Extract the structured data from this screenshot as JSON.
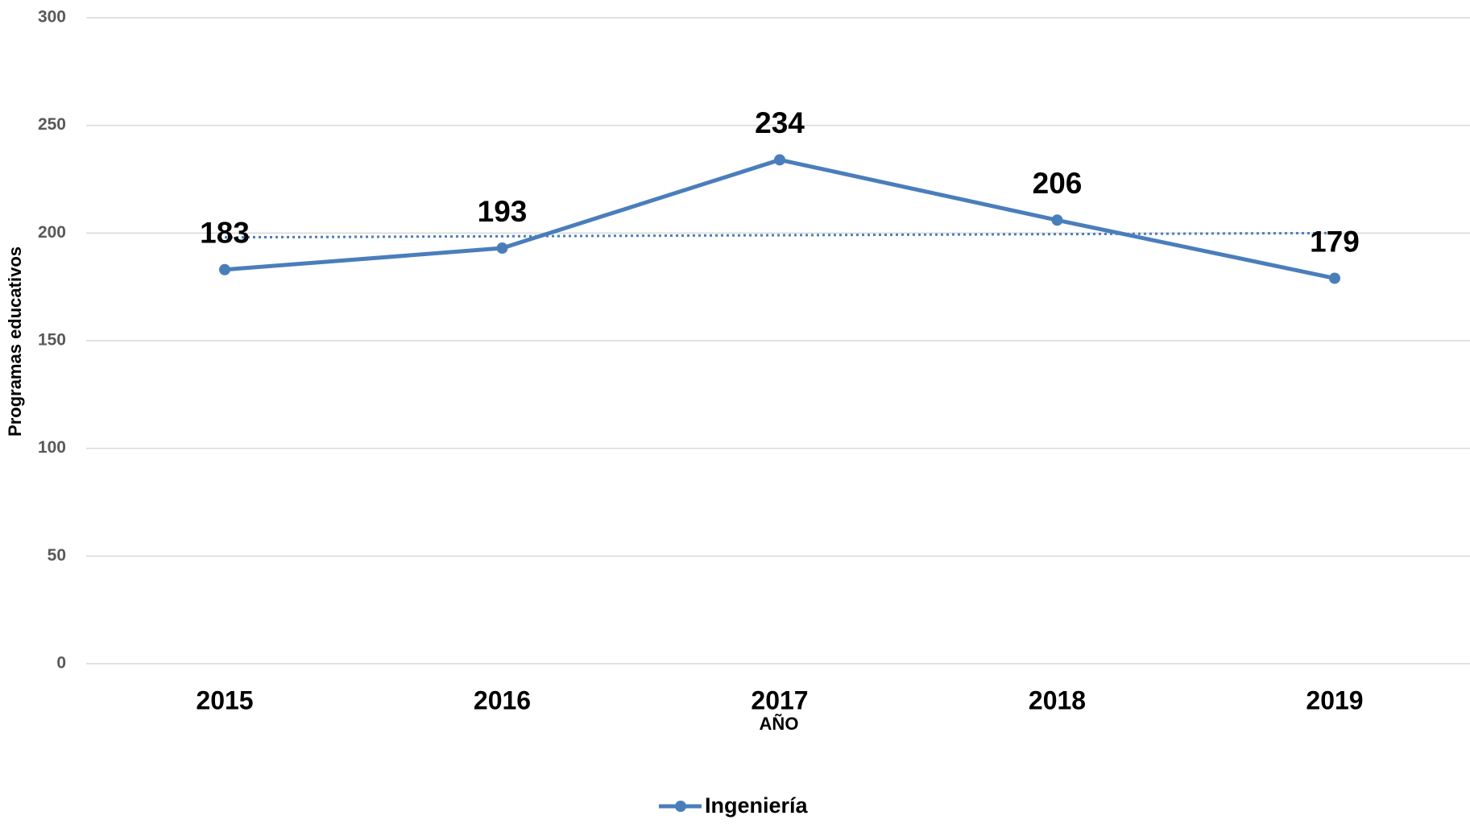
{
  "chart_data": {
    "type": "line",
    "x_label": "AÑO",
    "y_label": "Programas educativos",
    "categories": [
      "2015",
      "2016",
      "2017",
      "2018",
      "2019"
    ],
    "series": [
      {
        "name": "Ingeniería",
        "color": "#4a7ebb",
        "values": [
          183,
          193,
          234,
          206,
          179
        ]
      }
    ],
    "ylim": [
      0,
      300
    ],
    "yticks": [
      0,
      50,
      100,
      150,
      200,
      250,
      300
    ],
    "grid": true,
    "trendline": "linear",
    "legend": "bottom"
  }
}
